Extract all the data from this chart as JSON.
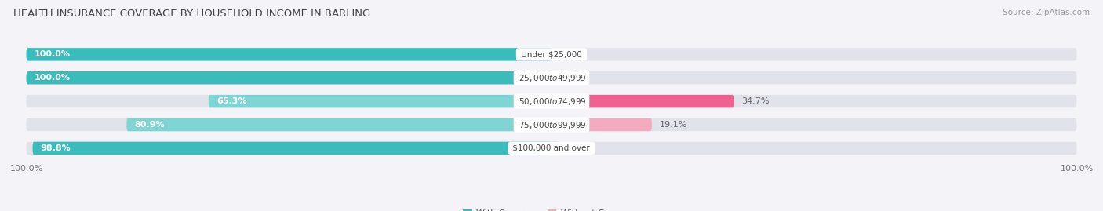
{
  "title": "HEALTH INSURANCE COVERAGE BY HOUSEHOLD INCOME IN BARLING",
  "source": "Source: ZipAtlas.com",
  "categories": [
    "Under $25,000",
    "$25,000 to $49,999",
    "$50,000 to $74,999",
    "$75,000 to $99,999",
    "$100,000 and over"
  ],
  "with_coverage": [
    100.0,
    100.0,
    65.3,
    80.9,
    98.8
  ],
  "without_coverage": [
    0.0,
    0.0,
    34.7,
    19.1,
    1.2
  ],
  "color_with": "#3BBCBC",
  "color_with_light": "#7FD4D4",
  "color_without": "#F06090",
  "color_without_light": "#F4AABF",
  "bar_bg": "#E2E2EA",
  "title_fontsize": 9.5,
  "source_fontsize": 7.5,
  "label_fontsize": 8,
  "cat_fontsize": 7.5,
  "legend_fontsize": 8,
  "x_left_label": "100.0%",
  "x_right_label": "100.0%",
  "fig_bg": "#F4F4F8"
}
